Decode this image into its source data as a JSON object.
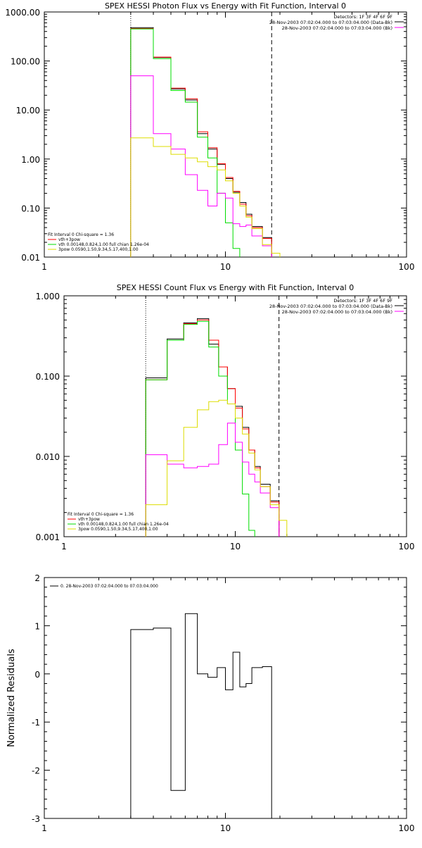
{
  "chart_data": [
    {
      "type": "line",
      "step": true,
      "title": "SPEX HESSI Photon Flux vs Energy with Fit Function, Interval 0",
      "xlabel": "",
      "ylabel": "",
      "xscale": "log",
      "yscale": "log",
      "xlim": [
        1,
        100
      ],
      "ylim": [
        0.01,
        1000
      ],
      "xticks": [
        "1",
        "10",
        "100"
      ],
      "yticks": [
        "0.01",
        "0.10",
        "1.00",
        "10.00",
        "100.00",
        "1000.00"
      ],
      "vlines": [
        {
          "x": 3,
          "style": "dotted"
        },
        {
          "x": 18,
          "style": "dashed"
        }
      ],
      "info_lines": [
        "Detectors: 1F 3F 4F 6F 9F",
        "28-Nov-2003 07:02:04.000 to 07:03:04.000 (Data-Bk)",
        "28-Nov-2003 07:02:04.000 to 07:03:04.000 (Bk)"
      ],
      "legend": [
        "Fit Interval 0   Chi-square = 1.36",
        "vth+3pow",
        "vth 0.00148,0.824,1.00  full chian 1.26e-04",
        "3pow 0.0590,1.50,9.34,5.17,400,1.00"
      ],
      "edges": [
        3,
        4,
        5,
        6,
        7,
        8,
        9,
        10,
        11,
        12,
        13,
        14,
        16,
        18,
        20
      ],
      "series": [
        {
          "color": "#000000",
          "values": [
            480,
            118,
            27,
            16,
            3.3,
            1.6,
            0.78,
            0.4,
            0.21,
            0.13,
            0.075,
            0.042,
            0.025,
            null
          ]
        },
        {
          "color": "#ff0000",
          "values": [
            460,
            120,
            28,
            17,
            3.6,
            1.7,
            0.8,
            0.42,
            0.22,
            0.12,
            0.07,
            0.04,
            0.024,
            null
          ]
        },
        {
          "color": "#00dd00",
          "values": [
            450,
            112,
            25,
            14.5,
            2.8,
            1.05,
            0.2,
            0.05,
            0.015,
            null,
            null,
            null,
            null,
            null
          ]
        },
        {
          "color": "#ff00ff",
          "values": [
            50,
            3.3,
            1.6,
            0.48,
            0.23,
            0.11,
            0.2,
            0.16,
            0.048,
            0.042,
            0.045,
            0.027,
            0.017,
            null
          ]
        },
        {
          "color": "#dddd00",
          "values": [
            2.7,
            1.8,
            1.25,
            1.05,
            0.88,
            0.7,
            0.6,
            0.36,
            0.2,
            0.11,
            0.065,
            0.038,
            0.018,
            0.012
          ]
        }
      ]
    },
    {
      "type": "line",
      "step": true,
      "title": "SPEX HESSI Count Flux vs Energy with Fit Function, Interval 0",
      "xlabel": "",
      "ylabel": "",
      "xscale": "log",
      "yscale": "log",
      "xlim": [
        1,
        100
      ],
      "ylim": [
        0.001,
        1
      ],
      "xticks": [
        "1",
        "10",
        "100"
      ],
      "yticks": [
        "0.001",
        "0.010",
        "0.100",
        "1.000"
      ],
      "vlines": [
        {
          "x": 3,
          "style": "dotted"
        },
        {
          "x": 18,
          "style": "dashed"
        }
      ],
      "info_lines": [
        "Detectors: 1F 3F 4F 6F 9F",
        "28-Nov-2003 07:02:04.000 to 07:03:04.000 (Data-Bk)",
        "28-Nov-2003 07:02:04.000 to 07:03:04.000 (Bk)"
      ],
      "legend": [
        "Fit Interval 0   Chi-square = 1.36",
        "vth+3pow",
        "vth 0.00148,0.824,1.00  full chian 1.26e-04",
        "3pow 0.0590,1.50,9.34,5.17,400,1.00"
      ],
      "edges": [
        3,
        4,
        5,
        6,
        7,
        8,
        9,
        10,
        11,
        12,
        13,
        14,
        16,
        18,
        20
      ],
      "series": [
        {
          "color": "#000000",
          "values": [
            0.095,
            0.29,
            0.46,
            0.52,
            0.25,
            0.13,
            0.07,
            0.042,
            0.023,
            0.012,
            0.0075,
            0.0045,
            0.0028,
            null
          ]
        },
        {
          "color": "#ff0000",
          "values": [
            0.09,
            0.28,
            0.45,
            0.5,
            0.28,
            0.13,
            0.07,
            0.04,
            0.022,
            0.012,
            0.0072,
            0.0042,
            0.0027,
            null
          ]
        },
        {
          "color": "#00dd00",
          "values": [
            0.09,
            0.28,
            0.44,
            0.48,
            0.23,
            0.1,
            0.045,
            0.012,
            0.0034,
            0.0012,
            null,
            null,
            null,
            null
          ]
        },
        {
          "color": "#ff00ff",
          "values": [
            0.0105,
            0.008,
            0.0072,
            0.0075,
            0.008,
            0.014,
            0.026,
            0.015,
            0.0085,
            0.006,
            0.0048,
            0.0035,
            0.0023,
            null
          ]
        },
        {
          "color": "#dddd00",
          "values": [
            0.0025,
            0.0088,
            0.023,
            0.038,
            0.048,
            0.05,
            0.045,
            0.03,
            0.019,
            0.011,
            0.0068,
            0.0042,
            0.0025,
            0.0016
          ]
        }
      ]
    },
    {
      "type": "line",
      "step": true,
      "title": "",
      "xlabel": "",
      "ylabel": "Normalized Residuals",
      "xscale": "log",
      "yscale": "linear",
      "xlim": [
        1,
        100
      ],
      "ylim": [
        -3,
        2
      ],
      "xticks": [
        "1",
        "10",
        "100"
      ],
      "yticks": [
        "-3",
        "-2",
        "-1",
        "0",
        "1",
        "2"
      ],
      "legend": [
        "0. 28-Nov-2003 07:02:04.000 to 07:03:04.000"
      ],
      "edges": [
        3,
        4,
        5,
        6,
        7,
        8,
        9,
        10,
        11,
        12,
        13,
        14,
        16,
        18
      ],
      "series": [
        {
          "color": "#000000",
          "values": [
            0.92,
            0.95,
            -2.42,
            1.25,
            0.0,
            -0.07,
            0.13,
            -0.33,
            0.45,
            -0.27,
            -0.2,
            0.13,
            0.15
          ]
        }
      ]
    }
  ]
}
